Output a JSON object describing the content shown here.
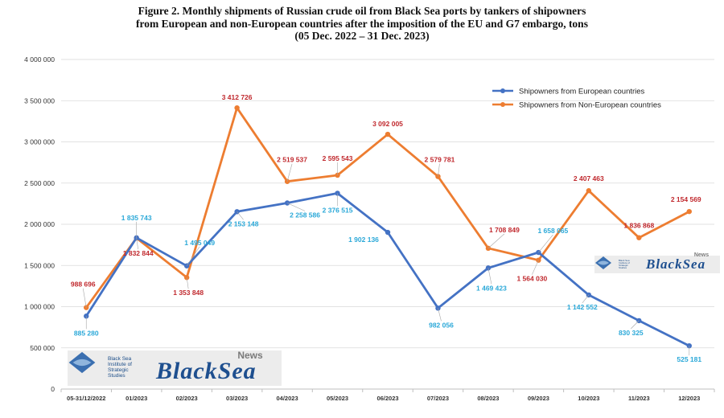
{
  "title_lines": [
    "Figure 2. Monthly shipments of Russian crude oil from Black Sea ports by tankers of shipowners",
    "from European and non-European countries after the imposition of the EU and G7 embargo, tons",
    "(05 Dec. 2022 – 31 Dec. 2023)"
  ],
  "chart_data": {
    "type": "line",
    "title": "Figure 2. Monthly shipments of Russian crude oil from Black Sea ports by tankers of shipowners from European and non-European countries after the imposition of the EU and G7 embargo, tons (05 Dec. 2022 – 31 Dec. 2023)",
    "xlabel": "",
    "ylabel": "",
    "categories": [
      "05-31/12/2022",
      "01/2023",
      "02/2023",
      "03/2023",
      "04/2023",
      "05/2023",
      "06/2023",
      "07/2023",
      "08/2023",
      "09/2023",
      "10/2023",
      "11/2023",
      "12/2023"
    ],
    "ylim": [
      0,
      4000000
    ],
    "yticks": [
      0,
      500000,
      1000000,
      1500000,
      2000000,
      2500000,
      3000000,
      3500000,
      4000000
    ],
    "ytick_labels": [
      "0",
      "500 000",
      "1 000 000",
      "1 500 000",
      "2 000 000",
      "2 500 000",
      "3 000 000",
      "3 500 000",
      "4 000 000"
    ],
    "grid": true,
    "legend_position": "top-right",
    "series": [
      {
        "name": "Shipowners from European countries",
        "color": "#4472c4",
        "label_color": "#2aa8d8",
        "values": [
          885280,
          1835743,
          1495049,
          2153148,
          2258586,
          2376515,
          1902136,
          982056,
          1469423,
          1658065,
          1142552,
          830325,
          525181
        ],
        "labels": [
          "885 280",
          "1 835 743",
          "1 495 049",
          "2 153 148",
          "2 258 586",
          "2 376 515",
          "1 902 136",
          "982 056",
          "1 469 423",
          "1 658 065",
          "1 142 552",
          "830 325",
          "525 181"
        ]
      },
      {
        "name": "Shipowners from Non-European countries",
        "color": "#ed7d31",
        "label_color": "#c0282d",
        "values": [
          988696,
          1832844,
          1353848,
          3412726,
          2519537,
          2595543,
          3092005,
          2579781,
          1708849,
          1564030,
          2407463,
          1836868,
          2154569
        ],
        "labels": [
          "988 696",
          "1 832 844",
          "1 353 848",
          "3 412 726",
          "2 519 537",
          "2 595 543",
          "3 092 005",
          "2 579 781",
          "1 708 849",
          "1 564 030",
          "2 407 463",
          "1 836 868",
          "2 154 569"
        ]
      }
    ]
  },
  "logo": {
    "institute_lines": [
      "Black Sea",
      "Institute of",
      "Strategic",
      "Studies"
    ],
    "wordmark": "BlackSea",
    "news": "News"
  }
}
